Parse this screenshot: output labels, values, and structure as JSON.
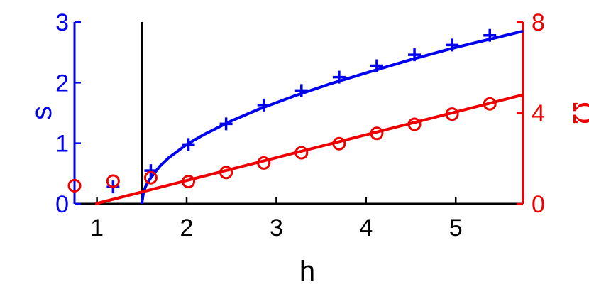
{
  "chart_data": {
    "type": "line",
    "title": "",
    "xlabel": "h",
    "ylabel_left": "s",
    "ylabel_right": "Ω",
    "xlim": [
      0.75,
      5.75
    ],
    "ylim_left": [
      0,
      3
    ],
    "ylim_right": [
      0,
      8
    ],
    "xticks": [
      "1",
      "2",
      "3",
      "4",
      "5"
    ],
    "yticks_left": [
      "0",
      "1",
      "2",
      "3"
    ],
    "yticks_right": [
      "0",
      "4",
      "8"
    ],
    "vertical_line_x": 1.5,
    "grid": false,
    "colors": {
      "left": "#0000ee",
      "right": "#ee0000",
      "marker_line": "#000000",
      "axis": "#000000"
    },
    "series": [
      {
        "axis": "left",
        "kind": "curve",
        "x": [
          1.5,
          1.52,
          1.55,
          1.6,
          1.7,
          1.8,
          2.0,
          2.2,
          2.5,
          2.8,
          3.2,
          3.6,
          4.0,
          4.5,
          5.0,
          5.5,
          5.75
        ],
        "y": [
          0.0,
          0.2,
          0.31,
          0.43,
          0.62,
          0.76,
          0.98,
          1.15,
          1.37,
          1.56,
          1.78,
          1.98,
          2.16,
          2.38,
          2.58,
          2.76,
          2.85
        ]
      },
      {
        "axis": "left",
        "kind": "plus-markers",
        "x": [
          1.18,
          1.6,
          2.02,
          2.44,
          2.86,
          3.28,
          3.7,
          4.12,
          4.54,
          4.96,
          5.38
        ],
        "y": [
          0.28,
          0.55,
          0.98,
          1.32,
          1.63,
          1.87,
          2.09,
          2.28,
          2.46,
          2.62,
          2.78
        ]
      },
      {
        "axis": "right",
        "kind": "line",
        "x": [
          0.98,
          5.75
        ],
        "y": [
          0.0,
          4.8
        ]
      },
      {
        "axis": "right",
        "kind": "circle-markers",
        "x": [
          0.75,
          1.18,
          1.6,
          2.02,
          2.44,
          2.86,
          3.28,
          3.7,
          4.12,
          4.54,
          4.96,
          5.38
        ],
        "y": [
          0.8,
          1.0,
          1.15,
          0.98,
          1.38,
          1.8,
          2.25,
          2.65,
          3.1,
          3.5,
          3.95,
          4.4
        ]
      }
    ]
  }
}
